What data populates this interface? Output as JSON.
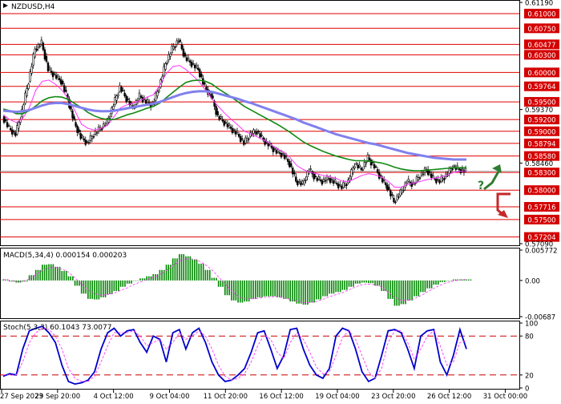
{
  "chart_data": [
    {
      "type": "candlestick",
      "title": "NZDUSD,H4",
      "ylim": [
        0.5709,
        0.6119
      ],
      "y_ticks_plain": [
        "0.61190",
        "0.59370",
        "0.58460",
        "0.57090"
      ],
      "levels": [
        {
          "value": 0.61,
          "label": "0.61000"
        },
        {
          "value": 0.6075,
          "label": "0.60750"
        },
        {
          "value": 0.60477,
          "label": "0.60477"
        },
        {
          "value": 0.603,
          "label": "0.60300"
        },
        {
          "value": 0.6,
          "label": "0.60000"
        },
        {
          "value": 0.59764,
          "label": "0.59764"
        },
        {
          "value": 0.595,
          "label": "0.59500"
        },
        {
          "value": 0.592,
          "label": "0.59200"
        },
        {
          "value": 0.59,
          "label": "0.59000"
        },
        {
          "value": 0.58794,
          "label": "0.58794"
        },
        {
          "value": 0.5858,
          "label": "0.58580"
        },
        {
          "value": 0.583,
          "label": "0.58300"
        },
        {
          "value": 0.58,
          "label": "0.58000"
        },
        {
          "value": 0.57716,
          "label": "0.57716"
        },
        {
          "value": 0.575,
          "label": "0.57500"
        },
        {
          "value": 0.57204,
          "label": "0.57204"
        }
      ],
      "price_path": [
        0.5925,
        0.5905,
        0.5895,
        0.5935,
        0.5985,
        0.604,
        0.605,
        0.6005,
        0.5995,
        0.5985,
        0.5955,
        0.5915,
        0.589,
        0.588,
        0.5895,
        0.5905,
        0.5915,
        0.5945,
        0.5975,
        0.5955,
        0.594,
        0.596,
        0.595,
        0.5945,
        0.5975,
        0.6015,
        0.604,
        0.6055,
        0.6025,
        0.6015,
        0.6005,
        0.5975,
        0.596,
        0.5925,
        0.5915,
        0.5905,
        0.5895,
        0.588,
        0.5895,
        0.59,
        0.5885,
        0.5875,
        0.5865,
        0.586,
        0.5845,
        0.5815,
        0.581,
        0.5835,
        0.582,
        0.5815,
        0.582,
        0.5812,
        0.5805,
        0.5815,
        0.5845,
        0.5835,
        0.5855,
        0.584,
        0.582,
        0.5805,
        0.578,
        0.5795,
        0.5815,
        0.581,
        0.5825,
        0.5835,
        0.582,
        0.5815,
        0.5825,
        0.584,
        0.5835,
        0.5832
      ],
      "series": [
        {
          "color": "#ff33ff",
          "values": [
            0.5928,
            0.592,
            0.5915,
            0.5922,
            0.594,
            0.597,
            0.5985,
            0.5987,
            0.598,
            0.597,
            0.5955,
            0.5935,
            0.5912,
            0.5905,
            0.5902,
            0.5905,
            0.591,
            0.5925,
            0.594,
            0.5945,
            0.5948,
            0.5952,
            0.5958,
            0.5962,
            0.5978,
            0.5998,
            0.601,
            0.6012,
            0.6005,
            0.5995,
            0.5985,
            0.597,
            0.5955,
            0.5942,
            0.593,
            0.592,
            0.591,
            0.59,
            0.5895,
            0.589,
            0.5885,
            0.5878,
            0.587,
            0.5865,
            0.5855,
            0.5842,
            0.5835,
            0.583,
            0.5828,
            0.5825,
            0.5823,
            0.582,
            0.5815,
            0.5815,
            0.582,
            0.5825,
            0.5828,
            0.5826,
            0.5822,
            0.5815,
            0.5805,
            0.5805,
            0.581,
            0.5812,
            0.5815,
            0.5818,
            0.582,
            0.5822,
            0.5825,
            0.583,
            0.5832,
            0.5832
          ]
        },
        {
          "color": "#118811",
          "values": [
            0.5938,
            0.5935,
            0.593,
            0.593,
            0.5935,
            0.5943,
            0.5952,
            0.5957,
            0.5959,
            0.5958,
            0.5954,
            0.5947,
            0.594,
            0.5932,
            0.5926,
            0.5922,
            0.592,
            0.592,
            0.5924,
            0.5928,
            0.5931,
            0.5935,
            0.5939,
            0.5942,
            0.5948,
            0.5957,
            0.5966,
            0.5975,
            0.5983,
            0.5986,
            0.5987,
            0.5985,
            0.598,
            0.5972,
            0.5965,
            0.5958,
            0.595,
            0.5942,
            0.5936,
            0.593,
            0.5924,
            0.5918,
            0.5912,
            0.5905,
            0.5898,
            0.589,
            0.5882,
            0.5876,
            0.5871,
            0.5866,
            0.5862,
            0.5858,
            0.5855,
            0.5852,
            0.585,
            0.585,
            0.5849,
            0.5848,
            0.5846,
            0.5843,
            0.5839,
            0.5836,
            0.5834,
            0.5833,
            0.5833,
            0.5834,
            0.5835,
            0.5836,
            0.5837,
            0.5838,
            0.5838,
            0.5838
          ]
        },
        {
          "color": "#8080ee",
          "values": [
            0.5935,
            0.5934,
            0.5933,
            0.5934,
            0.5936,
            0.594,
            0.5944,
            0.5947,
            0.5948,
            0.5948,
            0.5946,
            0.5943,
            0.594,
            0.5937,
            0.5935,
            0.5934,
            0.5934,
            0.5935,
            0.5937,
            0.5939,
            0.5941,
            0.5943,
            0.5945,
            0.5947,
            0.595,
            0.5954,
            0.5958,
            0.5962,
            0.5965,
            0.5967,
            0.5968,
            0.5968,
            0.5967,
            0.5964,
            0.5961,
            0.5958,
            0.5955,
            0.5951,
            0.5948,
            0.5944,
            0.594,
            0.5936,
            0.5932,
            0.5928,
            0.5924,
            0.592,
            0.5915,
            0.5911,
            0.5907,
            0.5903,
            0.5899,
            0.5895,
            0.5892,
            0.5889,
            0.5886,
            0.5883,
            0.588,
            0.5878,
            0.5875,
            0.5872,
            0.5869,
            0.5866,
            0.5863,
            0.5861,
            0.5859,
            0.5857,
            0.5855,
            0.5854,
            0.5853,
            0.5852,
            0.5852,
            0.5852
          ]
        }
      ],
      "x_labels": [
        "27 Sep 2023",
        "29 Sep 20:00",
        "4 Oct 12:00",
        "9 Oct 04:00",
        "11 Oct 20:00",
        "16 Oct 12:00",
        "19 Oct 04:00",
        "23 Oct 20:00",
        "26 Oct 12:00",
        "31 Oct 00:00"
      ],
      "forecast": {
        "question_mark": "?",
        "up_color": "#2e7d32",
        "down_color": "#c62828"
      }
    },
    {
      "type": "bar",
      "title": "MACD(5,34,4) 0.000154 0.000203",
      "ylim": [
        -0.00687,
        0.005772
      ],
      "y_ticks": [
        "0.005772",
        "0.00",
        "-0.00687"
      ],
      "histogram": [
        0.0002,
        -0.0002,
        -0.0004,
        -0.0002,
        0.001,
        0.002,
        0.003,
        0.0031,
        0.0026,
        0.0018,
        0.0008,
        -0.001,
        -0.0025,
        -0.0035,
        -0.0036,
        -0.0032,
        -0.0026,
        -0.002,
        -0.0012,
        -0.0006,
        0.0,
        0.0004,
        0.0008,
        0.0012,
        0.002,
        0.003,
        0.0042,
        0.005,
        0.0046,
        0.004,
        0.0032,
        0.002,
        0.0005,
        -0.0012,
        -0.0028,
        -0.0038,
        -0.0042,
        -0.004,
        -0.0035,
        -0.0032,
        -0.003,
        -0.003,
        -0.0032,
        -0.0035,
        -0.004,
        -0.0044,
        -0.0046,
        -0.0042,
        -0.0036,
        -0.003,
        -0.0025,
        -0.0022,
        -0.0018,
        -0.0012,
        -0.0006,
        -0.0004,
        -0.0005,
        -0.001,
        -0.002,
        -0.0035,
        -0.0048,
        -0.0045,
        -0.0038,
        -0.003,
        -0.0022,
        -0.0015,
        -0.0008,
        -0.0003,
        0.0,
        0.0002,
        0.0002,
        0.0002
      ],
      "signal": [
        0.0002,
        0.0,
        -0.0002,
        -0.0002,
        0.0003,
        0.0011,
        0.0019,
        0.0024,
        0.0025,
        0.0022,
        0.0016,
        0.0005,
        -0.0007,
        -0.0018,
        -0.0025,
        -0.0028,
        -0.0027,
        -0.0024,
        -0.0019,
        -0.0014,
        -0.0008,
        -0.0003,
        0.0002,
        0.0006,
        0.0011,
        0.0019,
        0.0028,
        0.0037,
        0.0041,
        0.0041,
        0.0037,
        0.003,
        0.002,
        0.0007,
        -0.0007,
        -0.002,
        -0.003,
        -0.0035,
        -0.0035,
        -0.0034,
        -0.0032,
        -0.0031,
        -0.0031,
        -0.0033,
        -0.0036,
        -0.0039,
        -0.0042,
        -0.0042,
        -0.004,
        -0.0036,
        -0.0031,
        -0.0027,
        -0.0023,
        -0.0018,
        -0.0012,
        -0.0008,
        -0.0007,
        -0.0008,
        -0.0013,
        -0.0022,
        -0.0032,
        -0.0038,
        -0.0038,
        -0.0035,
        -0.0029,
        -0.0022,
        -0.0015,
        -0.0009,
        -0.0004,
        -0.0001,
        0.0001,
        0.0002
      ],
      "colors": {
        "histogram": "#008800",
        "signal": "#ff33ff"
      }
    },
    {
      "type": "line",
      "title": "Stoch(5,3,3) 60.1043 73.0077",
      "ylim": [
        0,
        100
      ],
      "y_ticks": [
        "100",
        "80",
        "20",
        "0"
      ],
      "levels": [
        80,
        20
      ],
      "series": [
        {
          "color": "#0000cc",
          "values": [
            18,
            22,
            20,
            60,
            88,
            92,
            95,
            85,
            70,
            35,
            10,
            6,
            8,
            12,
            25,
            60,
            85,
            92,
            80,
            88,
            90,
            70,
            55,
            80,
            75,
            40,
            85,
            90,
            60,
            85,
            92,
            70,
            40,
            20,
            10,
            12,
            20,
            30,
            55,
            85,
            88,
            60,
            30,
            50,
            90,
            92,
            60,
            35,
            20,
            15,
            30,
            80,
            92,
            88,
            60,
            25,
            10,
            15,
            50,
            88,
            90,
            85,
            60,
            30,
            80,
            88,
            90,
            40,
            20,
            50,
            90,
            60
          ]
        },
        {
          "color": "#ff33ff",
          "values": [
            20,
            20,
            20,
            40,
            70,
            85,
            92,
            90,
            80,
            60,
            30,
            15,
            10,
            10,
            18,
            40,
            65,
            85,
            85,
            85,
            88,
            80,
            65,
            70,
            75,
            60,
            70,
            85,
            75,
            80,
            88,
            80,
            60,
            35,
            18,
            12,
            15,
            22,
            40,
            65,
            82,
            75,
            55,
            45,
            70,
            85,
            75,
            55,
            32,
            22,
            25,
            50,
            78,
            88,
            75,
            50,
            25,
            15,
            30,
            70,
            88,
            88,
            70,
            45,
            60,
            80,
            88,
            65,
            35,
            40,
            70,
            73
          ]
        }
      ],
      "dashed_levels_color": "#cc0000"
    }
  ]
}
